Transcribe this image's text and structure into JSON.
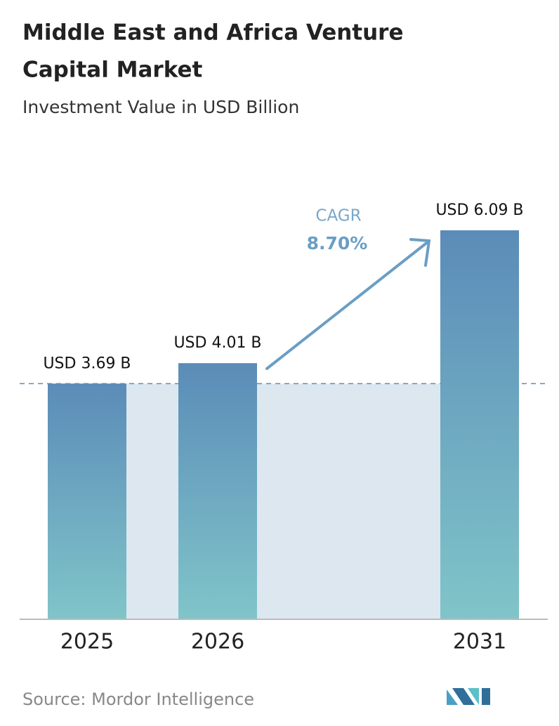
{
  "chart_data": {
    "type": "bar",
    "title": [
      "Middle East and Africa Venture",
      "Capital Market"
    ],
    "subtitle": "Investment Value in USD Billion",
    "categories": [
      "2025",
      "2026",
      "2031"
    ],
    "values": [
      3.69,
      4.01,
      6.09
    ],
    "value_labels": [
      "USD 3.69 B",
      "USD 4.01 B",
      "USD 6.09 B"
    ],
    "color": [
      "#5b8cb8",
      "#80c5c9"
    ],
    "annotation": {
      "label": "CAGR",
      "value": "8.70%"
    },
    "source": "Source:  Mordor Intelligence"
  }
}
